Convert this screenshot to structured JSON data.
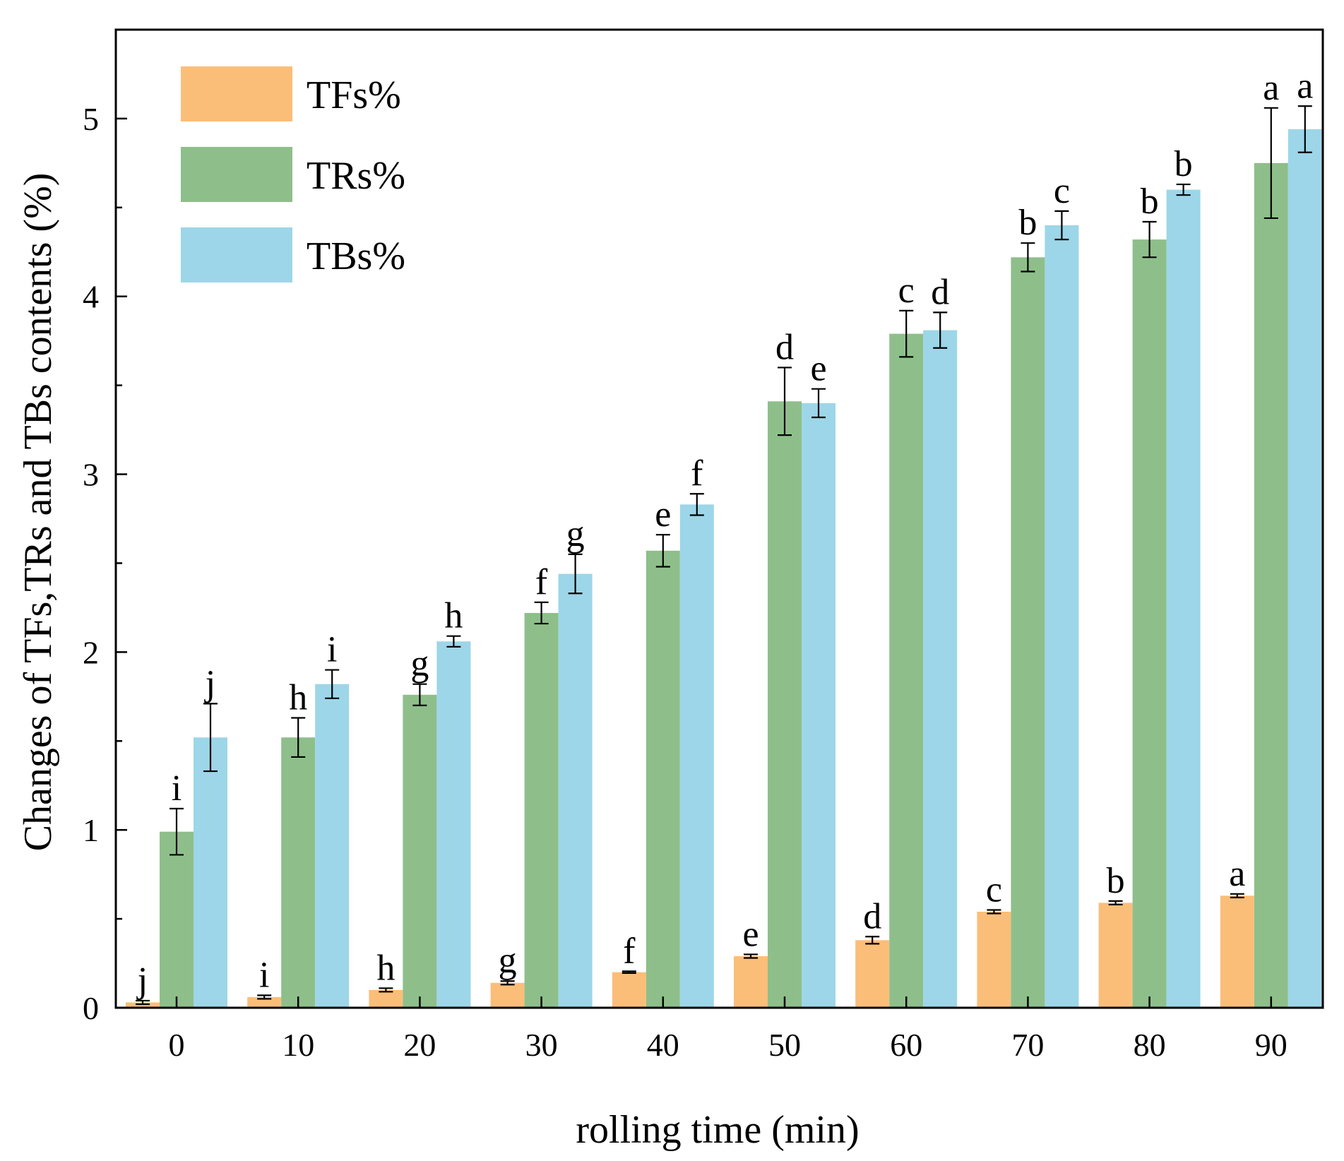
{
  "chart_data": {
    "type": "bar",
    "title": "",
    "xlabel": "rolling time (min)",
    "ylabel": "Changes of TFs,TRs and TBs contents (%)",
    "ylim": [
      0,
      5.5
    ],
    "yticks": [
      "0",
      "1",
      "2",
      "3",
      "4",
      "5"
    ],
    "categories": [
      "0",
      "10",
      "20",
      "30",
      "40",
      "50",
      "60",
      "70",
      "80",
      "90"
    ],
    "legend_position": "top-left",
    "series": [
      {
        "name": "TFs%",
        "color": "#FBBE79",
        "values": [
          0.03,
          0.06,
          0.1,
          0.14,
          0.2,
          0.29,
          0.38,
          0.54,
          0.59,
          0.63
        ],
        "errors": [
          0.01,
          0.01,
          0.01,
          0.01,
          0.005,
          0.01,
          0.02,
          0.01,
          0.01,
          0.01
        ],
        "letters": [
          "j",
          "i",
          "h",
          "g",
          "f",
          "e",
          "d",
          "c",
          "b",
          "a"
        ]
      },
      {
        "name": "TRs%",
        "color": "#8EBF8A",
        "values": [
          0.99,
          1.52,
          1.76,
          2.22,
          2.57,
          3.41,
          3.79,
          4.22,
          4.32,
          4.75
        ],
        "errors": [
          0.13,
          0.11,
          0.06,
          0.06,
          0.09,
          0.19,
          0.13,
          0.08,
          0.1,
          0.31
        ],
        "letters": [
          "i",
          "h",
          "g",
          "f",
          "e",
          "d",
          "c",
          "b",
          "b",
          "a"
        ]
      },
      {
        "name": "TBs%",
        "color": "#9DD6E8",
        "values": [
          1.52,
          1.82,
          2.06,
          2.44,
          2.83,
          3.4,
          3.81,
          4.4,
          4.6,
          4.94
        ],
        "errors": [
          0.19,
          0.08,
          0.03,
          0.11,
          0.06,
          0.08,
          0.1,
          0.08,
          0.03,
          0.13
        ],
        "letters": [
          "j",
          "i",
          "h",
          "g",
          "f",
          "e",
          "d",
          "c",
          "b",
          "a"
        ]
      }
    ]
  }
}
